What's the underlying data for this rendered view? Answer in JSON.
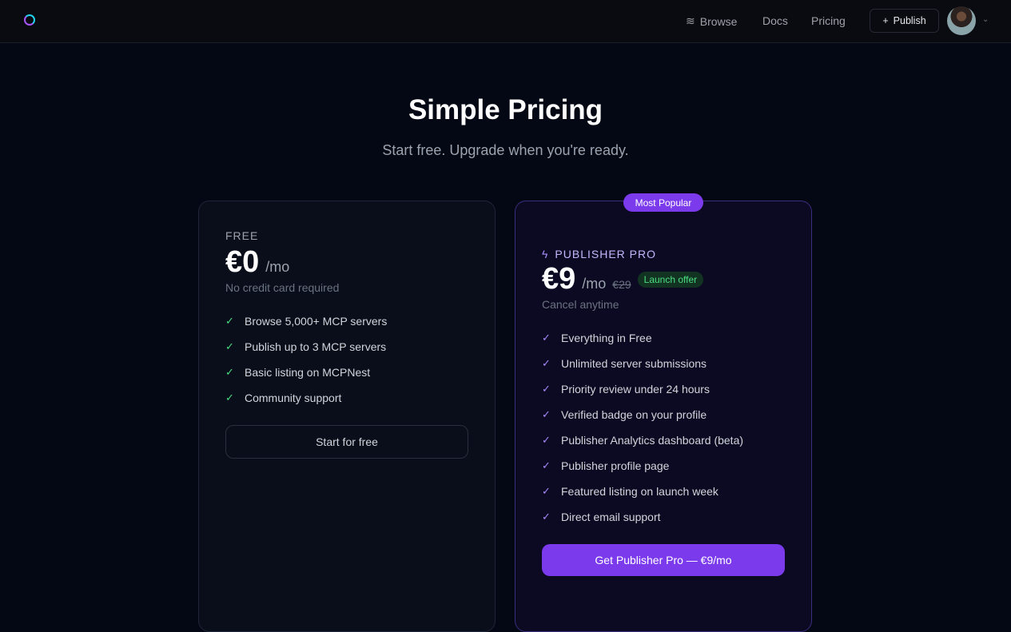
{
  "nav": {
    "browse": "Browse",
    "docs": "Docs",
    "pricing": "Pricing",
    "publish": "Publish"
  },
  "hero": {
    "title": "Simple Pricing",
    "subtitle": "Start free. Upgrade when you're ready."
  },
  "free": {
    "tier": "FREE",
    "amount": "€0",
    "period": "/mo",
    "note": "No credit card required",
    "features": [
      "Browse 5,000+ MCP servers",
      "Publish up to 3 MCP servers",
      "Basic listing on MCPNest",
      "Community support"
    ],
    "cta": "Start for free"
  },
  "pro": {
    "badge": "Most Popular",
    "tier": "PUBLISHER PRO",
    "amount": "€9",
    "period": "/mo",
    "old_price": "€29",
    "offer": "Launch offer",
    "note": "Cancel anytime",
    "features": [
      "Everything in Free",
      "Unlimited server submissions",
      "Priority review under 24 hours",
      "Verified badge on your profile",
      "Publisher Analytics dashboard (beta)",
      "Publisher profile page",
      "Featured listing on launch week",
      "Direct email support"
    ],
    "cta": "Get Publisher Pro — €9/mo"
  },
  "colors": {
    "accent": "#7c3aed",
    "check_free": "#4ade80",
    "check_pro": "#a78bfa"
  }
}
